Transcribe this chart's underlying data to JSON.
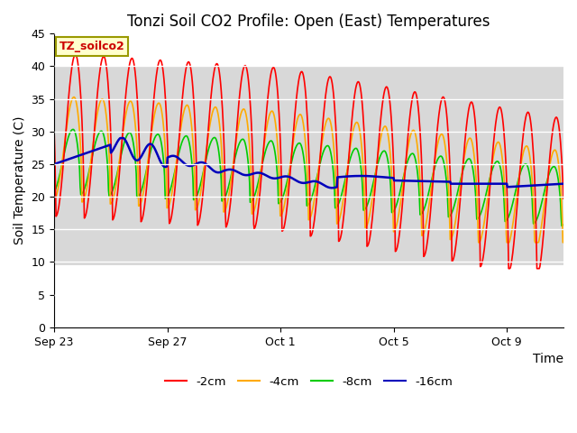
{
  "title": "Tonzi Soil CO2 Profile: Open (East) Temperatures",
  "xlabel": "Time",
  "ylabel": "Soil Temperature (C)",
  "legend_label": "TZ_soilco2",
  "ylim": [
    0,
    45
  ],
  "yticks": [
    0,
    5,
    10,
    15,
    20,
    25,
    30,
    35,
    40,
    45
  ],
  "series_labels": [
    "-2cm",
    "-4cm",
    "-8cm",
    "-16cm"
  ],
  "series_colors": [
    "#ff0000",
    "#ffaa00",
    "#00cc00",
    "#0000bb"
  ],
  "background_color": "#ffffff",
  "plot_bg_color": "#f0f0f0",
  "title_fontsize": 12,
  "axis_label_fontsize": 10,
  "tick_label_fontsize": 9,
  "xtick_positions": [
    0,
    4,
    8,
    12,
    16
  ],
  "xtick_dates": [
    "Sep 23",
    "Sep 27",
    "Oct 1",
    "Oct 5",
    "Oct 9"
  ],
  "n_days": 18,
  "shaded_band_color": "#d8d8d8",
  "shaded_band_low": 9.5,
  "shaded_band_high": 40.0
}
